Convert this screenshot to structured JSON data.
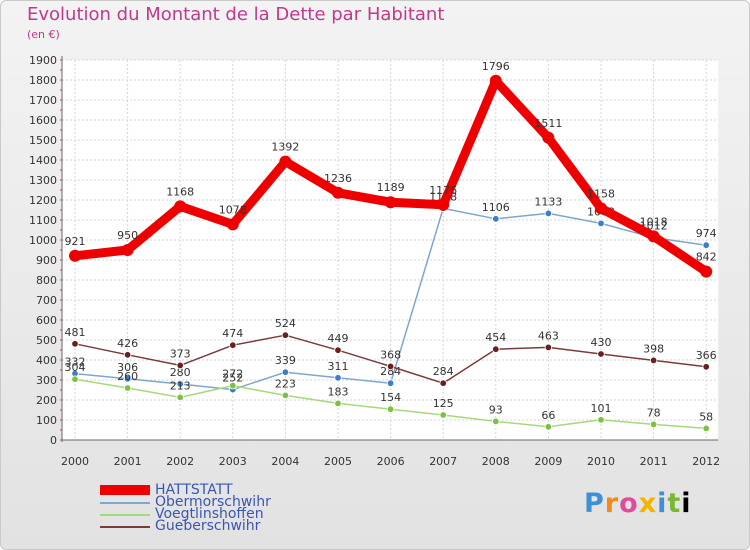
{
  "title": "Evolution du Montant de la Dette par Habitant",
  "unit": "(en €)",
  "logo_text": "Proxiti",
  "chart_data": {
    "type": "line",
    "x": [
      "2000",
      "2001",
      "2002",
      "2003",
      "2004",
      "2005",
      "2006",
      "2007",
      "2008",
      "2009",
      "2010",
      "2011",
      "2012"
    ],
    "ylim": [
      0,
      1900
    ],
    "yticks": [
      0,
      100,
      200,
      300,
      400,
      500,
      600,
      700,
      800,
      900,
      1000,
      1100,
      1200,
      1300,
      1400,
      1500,
      1600,
      1700,
      1800,
      1900
    ],
    "series": [
      {
        "name": "Obermorschwihr",
        "color": "#7ea6cf",
        "point": "#3b7fc4",
        "values": [
          332,
          306,
          280,
          252,
          339,
          311,
          284,
          1158,
          1106,
          1133,
          1083,
          1012,
          974
        ]
      },
      {
        "name": "Voegtlinshoffen",
        "color": "#a6d87c",
        "point": "#7cc142",
        "values": [
          304,
          260,
          213,
          272,
          223,
          183,
          154,
          125,
          93,
          66,
          101,
          78,
          58
        ]
      },
      {
        "name": "Gueberschwihr",
        "color": "#7a3b3b",
        "point": "#6b1f1f",
        "values": [
          481,
          426,
          373,
          474,
          524,
          449,
          368,
          284,
          454,
          463,
          430,
          398,
          366
        ]
      },
      {
        "name": "HATTSTATT",
        "color": "#ee0000",
        "point": "#ee0000",
        "values": [
          921,
          950,
          1168,
          1078,
          1392,
          1236,
          1189,
          1176,
          1796,
          1511,
          1158,
          1018,
          842
        ]
      }
    ],
    "legend": [
      {
        "name": "HATTSTATT",
        "color": "#ee0000"
      },
      {
        "name": "Obermorschwihr",
        "color": "#7ea6cf"
      },
      {
        "name": "Voegtlinshoffen",
        "color": "#a6d87c"
      },
      {
        "name": "Gueberschwihr",
        "color": "#7a3b3b"
      }
    ]
  }
}
